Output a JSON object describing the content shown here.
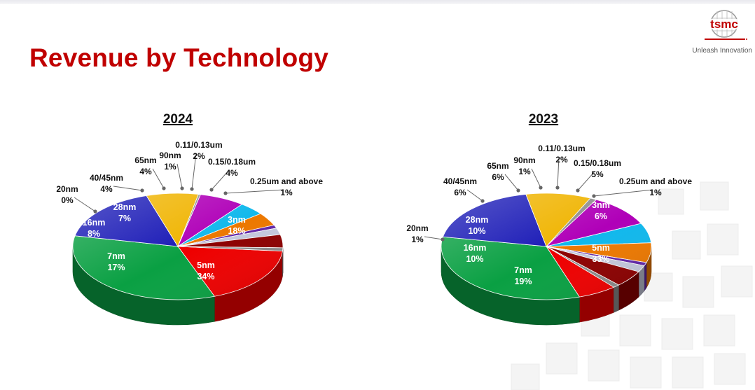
{
  "slide": {
    "title": "Revenue by Technology"
  },
  "logo": {
    "wordmark": "tsmc",
    "tagline": "Unleash Innovation",
    "brand_color": "#c00000"
  },
  "chart_data": [
    {
      "type": "pie",
      "title": "2024",
      "unit": "%",
      "slices": [
        {
          "label": "3nm",
          "value": 18,
          "color": "#ee0000"
        },
        {
          "label": "5nm",
          "value": 34,
          "color": "#0aa043"
        },
        {
          "label": "7nm",
          "value": 17,
          "color": "#1919b6"
        },
        {
          "label": "16nm",
          "value": 8,
          "color": "#f0b400"
        },
        {
          "label": "20nm",
          "value": 0,
          "color": "#909090"
        },
        {
          "label": "28nm",
          "value": 7,
          "color": "#b000b8"
        },
        {
          "label": "40/45nm",
          "value": 4,
          "color": "#10b8ec"
        },
        {
          "label": "65nm",
          "value": 4,
          "color": "#ec7800"
        },
        {
          "label": "90nm",
          "value": 1,
          "color": "#6226a8"
        },
        {
          "label": "0.11/0.13um",
          "value": 2,
          "color": "#c4c8dc"
        },
        {
          "label": "0.15/0.18um",
          "value": 4,
          "color": "#8c0000"
        },
        {
          "label": "0.25um and above",
          "value": 1,
          "color": "#8c8c8c"
        }
      ]
    },
    {
      "type": "pie",
      "title": "2023",
      "unit": "%",
      "slices": [
        {
          "label": "3nm",
          "value": 6,
          "color": "#ee0000"
        },
        {
          "label": "5nm",
          "value": 33,
          "color": "#0aa043"
        },
        {
          "label": "7nm",
          "value": 19,
          "color": "#1919b6"
        },
        {
          "label": "16nm",
          "value": 10,
          "color": "#f0b400"
        },
        {
          "label": "20nm",
          "value": 1,
          "color": "#909090"
        },
        {
          "label": "28nm",
          "value": 10,
          "color": "#b000b8"
        },
        {
          "label": "40/45nm",
          "value": 6,
          "color": "#10b8ec"
        },
        {
          "label": "65nm",
          "value": 6,
          "color": "#ec7800"
        },
        {
          "label": "90nm",
          "value": 1,
          "color": "#6226a8"
        },
        {
          "label": "0.11/0.13um",
          "value": 2,
          "color": "#c4c8dc"
        },
        {
          "label": "0.15/0.18um",
          "value": 5,
          "color": "#8c0000"
        },
        {
          "label": "0.25um and above",
          "value": 1,
          "color": "#8c8c8c"
        }
      ]
    }
  ]
}
